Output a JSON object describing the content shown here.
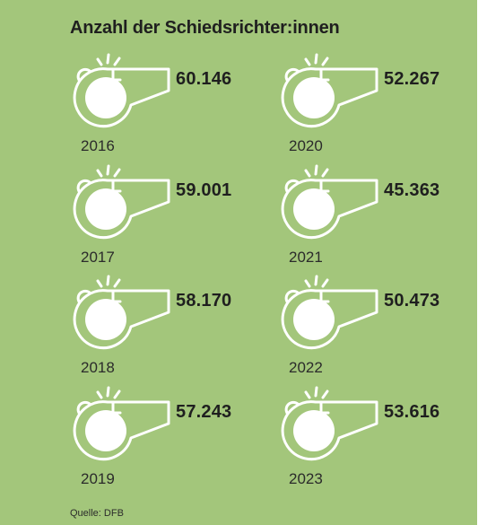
{
  "title": "Anzahl der Schiedsrichter:innen",
  "source": "Quelle: DFB",
  "colors": {
    "background": "#a3c67b",
    "whistle_outline": "#ffffff",
    "whistle_ball": "#ffffff",
    "text": "#1f1f1f"
  },
  "icon": "whistle-icon",
  "chart_data": {
    "type": "pictogram",
    "title": "Anzahl der Schiedsrichter:innen",
    "categories": [
      "2016",
      "2017",
      "2018",
      "2019",
      "2020",
      "2021",
      "2022",
      "2023"
    ],
    "values": [
      60146,
      59001,
      58170,
      57243,
      52267,
      45363,
      50473,
      53616
    ],
    "value_labels": [
      "60.146",
      "59.001",
      "58.170",
      "57.243",
      "52.267",
      "45.363",
      "50.473",
      "53.616"
    ],
    "xlabel": "",
    "ylabel": ""
  },
  "items": [
    {
      "year": "2016",
      "value": "60.146"
    },
    {
      "year": "2017",
      "value": "59.001"
    },
    {
      "year": "2018",
      "value": "58.170"
    },
    {
      "year": "2019",
      "value": "57.243"
    },
    {
      "year": "2020",
      "value": "52.267"
    },
    {
      "year": "2021",
      "value": "45.363"
    },
    {
      "year": "2022",
      "value": "50.473"
    },
    {
      "year": "2023",
      "value": "53.616"
    }
  ]
}
